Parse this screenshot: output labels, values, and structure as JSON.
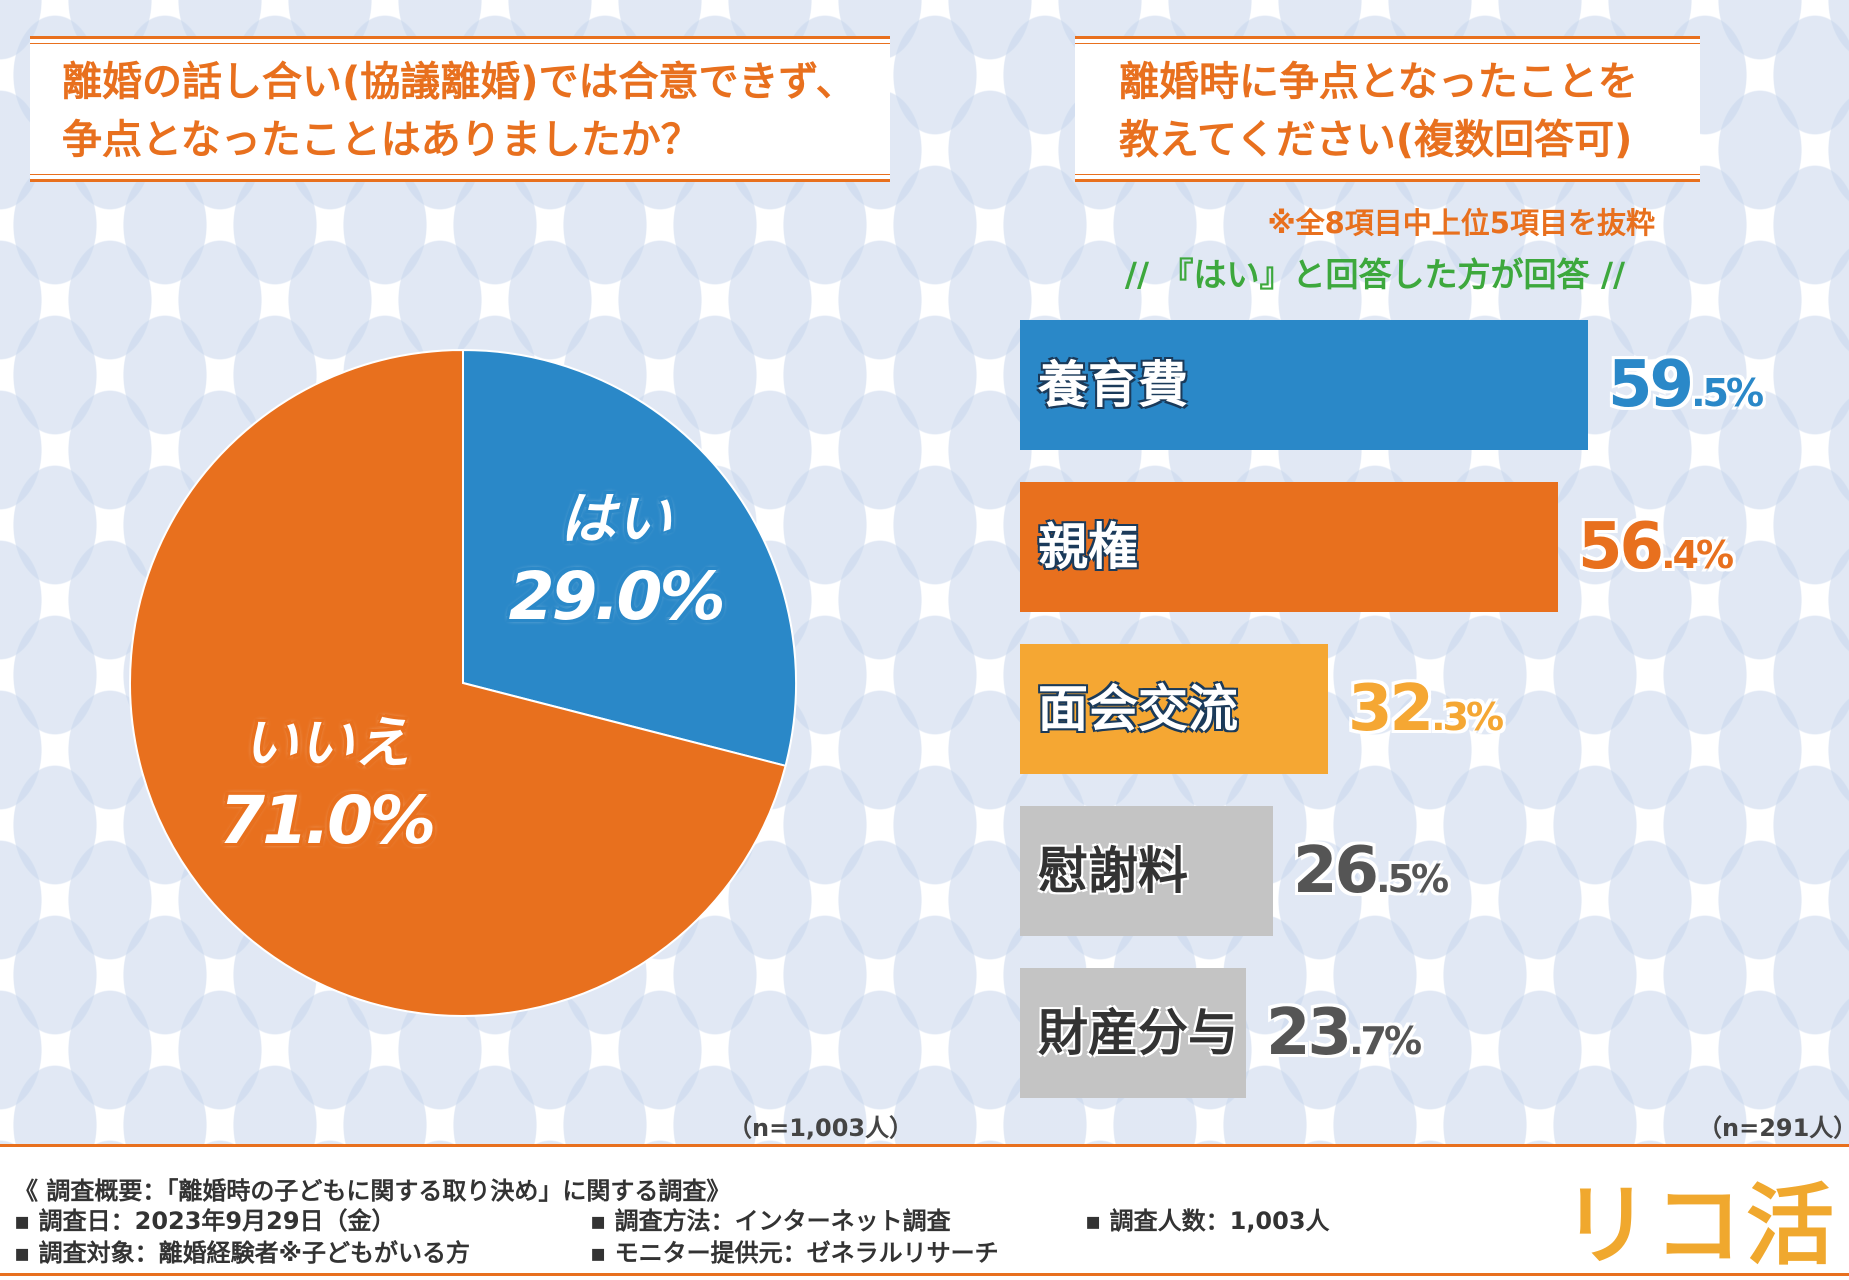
{
  "left_panel": {
    "title_line1": "離婚の話し合い(協議離婚)では合意できず、",
    "title_line2": "争点となったことはありましたか？",
    "sample": "（n=1,003人）"
  },
  "right_panel": {
    "title_line1": "離婚時に争点となったことを",
    "title_line2": "教えてください(複数回答可)",
    "note": "※全8項目中上位5項目を抜粋",
    "answer_note": "// 『はい』と回答した方が回答 //",
    "sample": "（n=291人）"
  },
  "chart_data": [
    {
      "type": "pie",
      "title": "離婚の話し合い(協議離婚)では合意できず、争点となったことはありましたか？",
      "categories": [
        "はい",
        "いいえ"
      ],
      "values": [
        29.0,
        71.0
      ],
      "value_labels": [
        "29.0%",
        "71.0%"
      ],
      "colors": [
        "#2a88c8",
        "#e8701e"
      ]
    },
    {
      "type": "bar",
      "orientation": "horizontal",
      "title": "離婚時に争点となったことを教えてください(複数回答可)",
      "categories": [
        "養育費",
        "親権",
        "面会交流",
        "慰謝料",
        "財産分与"
      ],
      "values": [
        59.5,
        56.4,
        32.3,
        26.5,
        23.7
      ],
      "value_labels": [
        {
          "main": "59",
          "decimal": ".5%"
        },
        {
          "main": "56",
          "decimal": ".4%"
        },
        {
          "main": "32",
          "decimal": ".3%"
        },
        {
          "main": "26",
          "decimal": ".5%"
        },
        {
          "main": "23",
          "decimal": ".7%"
        }
      ],
      "colors": [
        "#2a88c8",
        "#e8701e",
        "#f5a733",
        "#c4c4c4",
        "#c4c4c4"
      ],
      "value_colors": [
        "#2a88c8",
        "#e8701e",
        "#f5a733",
        "#555555",
        "#555555"
      ],
      "label_colors": [
        "#ffffff",
        "#ffffff",
        "#ffffff",
        "#333333",
        "#333333"
      ],
      "xlim": [
        0,
        59.5
      ]
    }
  ],
  "footer": {
    "survey_title": "《 調査概要：「離婚時の子どもに関する取り決め」に関する調査》",
    "date": "▪ 調査日：2023年9月29日（金）",
    "target": "▪ 調査対象：離婚経験者※子どもがいる方",
    "method": "▪ 調査方法：インターネット調査",
    "monitor": "▪ モニター提供元：ゼネラルリサーチ",
    "count": "▪ 調査人数：1,003人",
    "logo": "リコ活"
  }
}
